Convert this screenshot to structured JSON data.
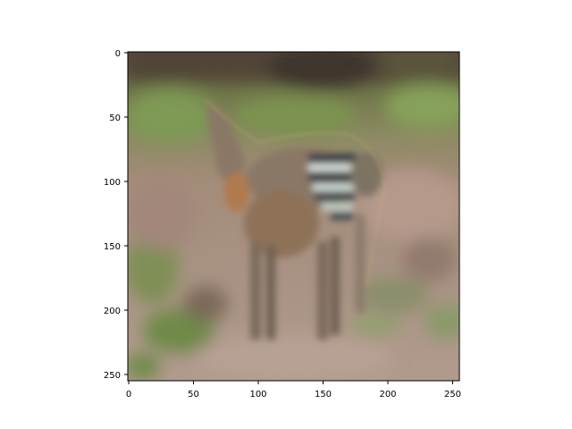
{
  "image": {
    "subject": "blurry reconstructed photo of a zebra-like animal standing on dry ground with green vegetation",
    "palette": {
      "ground": "#a68e7c",
      "vegetation": "#7e9a55",
      "animal_body": "#8a7560",
      "stripes_dark": "#2e3d48",
      "stripes_light": "#d9e6e4",
      "background_dark": "#4e4034"
    }
  },
  "axes": {
    "x_ticks": [
      "0",
      "50",
      "100",
      "150",
      "200",
      "250"
    ],
    "y_ticks": [
      "0",
      "50",
      "100",
      "150",
      "200",
      "250"
    ],
    "xlim": [
      0,
      256
    ],
    "ylim": [
      256,
      0
    ]
  }
}
